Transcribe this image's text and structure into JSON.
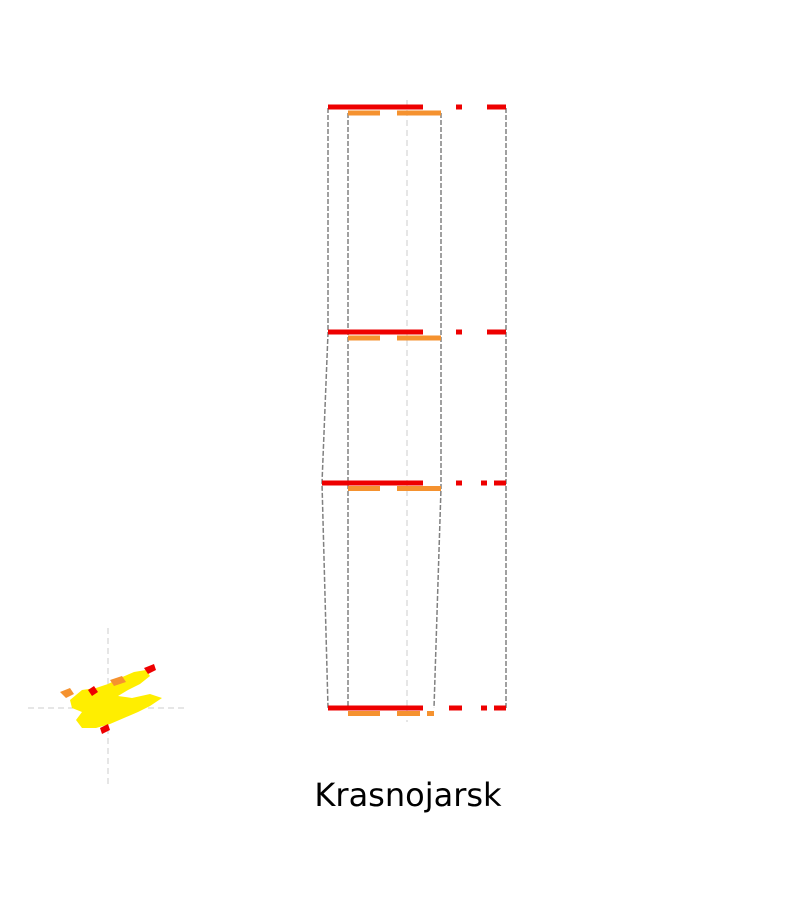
{
  "caption": "Krasnojarsk",
  "colors": {
    "red": "#ee0000",
    "orange": "#f5922f",
    "yellow": "#ffee00",
    "outline": "#808080",
    "guide": "#cccccc",
    "background": "#ffffff"
  }
}
